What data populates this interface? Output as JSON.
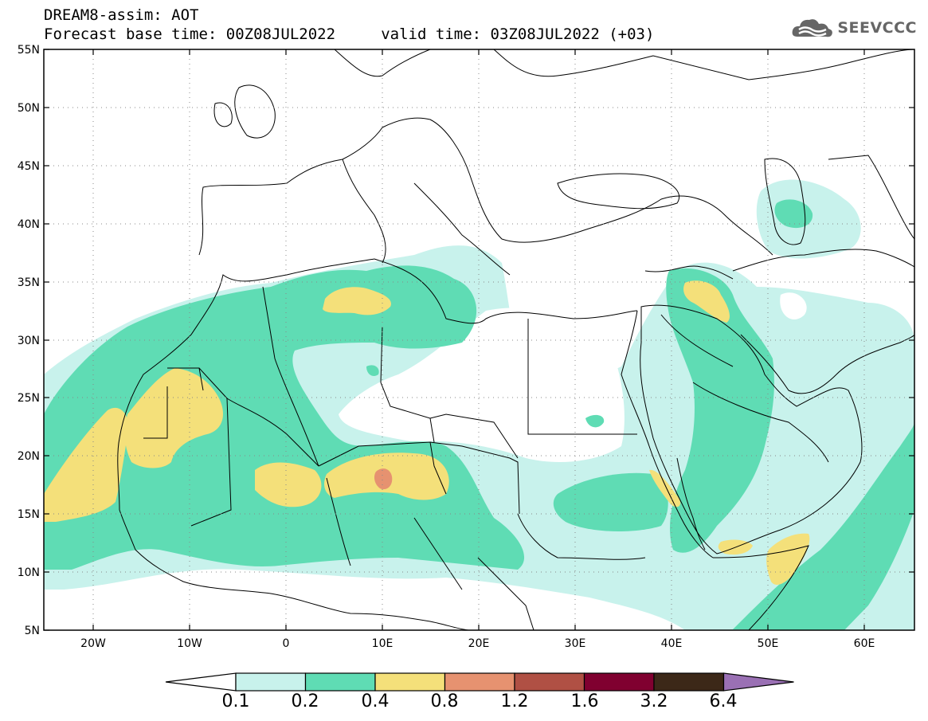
{
  "header": {
    "title_line1": "DREAM8-assim: AOT",
    "title_line2": "Forecast base time: 00Z08JUL2022     valid time: 03Z08JUL2022 (+03)"
  },
  "logo": {
    "text": "SEEVCCC",
    "icon": "cloud-icon"
  },
  "map": {
    "region": {
      "lon_range": [
        -25,
        65
      ],
      "lat_range": [
        5,
        55
      ]
    },
    "lat_ticks": [
      "55N",
      "50N",
      "45N",
      "40N",
      "35N",
      "30N",
      "25N",
      "20N",
      "15N",
      "10N",
      "5N"
    ],
    "lon_ticks": [
      "20W",
      "10W",
      "0",
      "10E",
      "20E",
      "30E",
      "40E",
      "50E",
      "60E"
    ]
  },
  "colorbar": {
    "labels": [
      "0.1",
      "0.2",
      "0.4",
      "0.8",
      "1.2",
      "1.6",
      "3.2",
      "6.4"
    ],
    "colors": [
      "#ffffff",
      "#c8f2ec",
      "#5fdcb4",
      "#f4e07a",
      "#e69270",
      "#b05044",
      "#800030",
      "#3c2818",
      "#9a70b4"
    ]
  }
}
